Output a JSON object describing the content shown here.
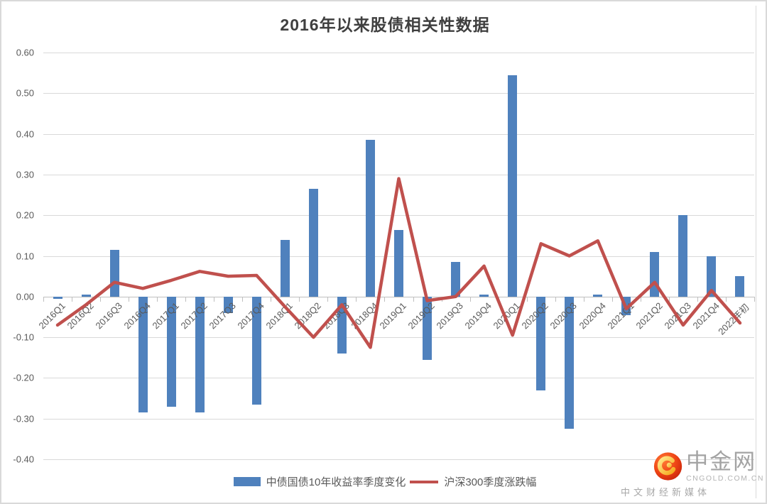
{
  "title": "2016年以来股债相关性数据",
  "legend": [
    {
      "label": "中债国债10年收益率季度变化",
      "type": "bar",
      "color": "#4F81BD"
    },
    {
      "label": "沪深300季度涨跌幅",
      "type": "line",
      "color": "#C0504D"
    }
  ],
  "watermark": {
    "name": "中金网",
    "domain": "CNGOLD.COM.CN",
    "tagline": "中文财经新媒体",
    "badge_color": "#e4380f",
    "swirl_color": "#f7b520"
  },
  "chart_data": {
    "type": "bar+line combo",
    "title": "2016年以来股债相关性数据",
    "categories": [
      "2016Q1",
      "2016Q2",
      "2016Q3",
      "2016Q4",
      "2017Q1",
      "2017Q2",
      "2017Q3",
      "2017Q4",
      "2018Q1",
      "2018Q2",
      "2018Q3",
      "2018Q4",
      "2019Q1",
      "2019Q2",
      "2019Q3",
      "2019Q4",
      "2020Q1",
      "2020Q2",
      "2020Q3",
      "2020Q4",
      "2021Q1",
      "2021Q2",
      "2021Q3",
      "2021Q4",
      "2022年初"
    ],
    "series": [
      {
        "name": "中债国债10年收益率季度变化",
        "type": "bar",
        "color": "#4F81BD",
        "values": [
          -0.005,
          0.005,
          0.115,
          -0.285,
          -0.27,
          -0.285,
          -0.04,
          -0.265,
          0.14,
          0.265,
          -0.14,
          0.385,
          0.163,
          -0.155,
          0.085,
          0.005,
          0.545,
          -0.23,
          -0.325,
          0.005,
          -0.045,
          0.11,
          0.2,
          0.1,
          0.05
        ]
      },
      {
        "name": "沪深300季度涨跌幅",
        "type": "line",
        "color": "#C0504D",
        "values": [
          -0.07,
          -0.02,
          0.035,
          0.02,
          0.04,
          0.062,
          0.05,
          0.052,
          -0.025,
          -0.1,
          -0.02,
          -0.125,
          0.29,
          -0.01,
          0.0,
          0.075,
          -0.095,
          0.13,
          0.1,
          0.137,
          -0.03,
          0.035,
          -0.07,
          0.015,
          -0.065
        ]
      }
    ],
    "ylim": [
      -0.4,
      0.6
    ],
    "ytick_step": 0.1,
    "ytick_labels": [
      "0.60",
      "0.50",
      "0.40",
      "0.30",
      "0.20",
      "0.10",
      "0.00",
      "-0.10",
      "-0.20",
      "-0.30",
      "-0.40"
    ],
    "xlabel": "",
    "ylabel": "",
    "grid": true,
    "x_tick_rotation_deg": 45,
    "legend_position": "bottom-center"
  }
}
